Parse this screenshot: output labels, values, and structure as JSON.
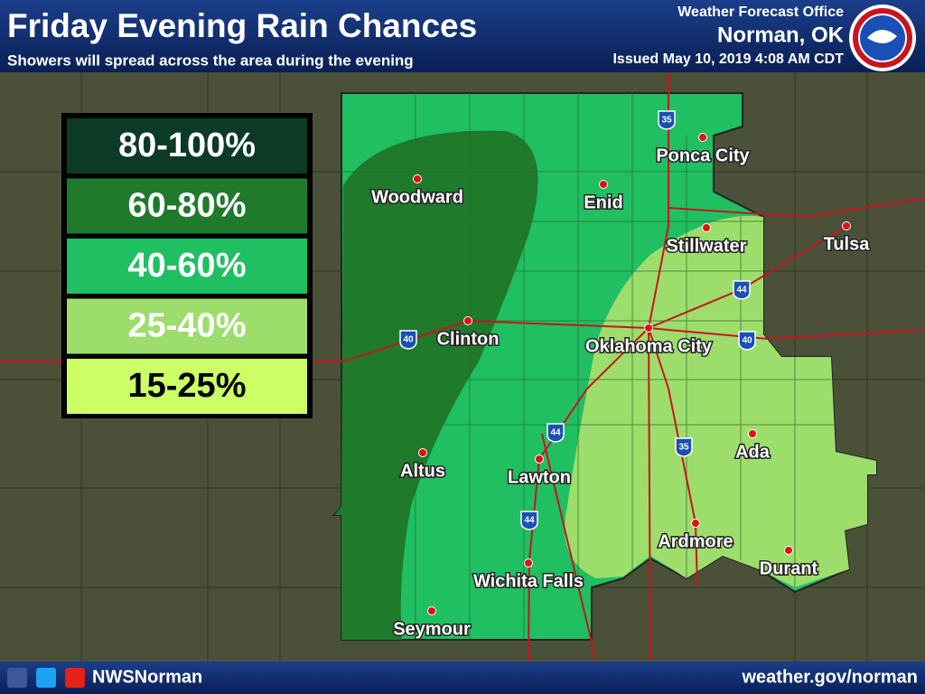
{
  "header": {
    "title": "Friday Evening Rain Chances",
    "subtitle": "Showers will spread across the area during the evening",
    "office": "Weather Forecast Office",
    "location": "Norman, OK",
    "issued": "Issued May 10, 2019 4:08 AM CDT"
  },
  "legend": [
    {
      "label": "80-100%",
      "color": "#0b3a26",
      "text_color": "#ffffff"
    },
    {
      "label": "60-80%",
      "color": "#1f7a2c",
      "text_color": "#ffffff"
    },
    {
      "label": "40-60%",
      "color": "#1fbf62",
      "text_color": "#ffffff"
    },
    {
      "label": "25-40%",
      "color": "#9ddd6c",
      "text_color": "#ffffff"
    },
    {
      "label": "15-25%",
      "color": "#ccff66",
      "text_color": "#000000"
    }
  ],
  "cities": [
    "Woodward",
    "Enid",
    "Ponca City",
    "Stillwater",
    "Tulsa",
    "Clinton",
    "Oklahoma City",
    "Altus",
    "Lawton",
    "Ada",
    "Ardmore",
    "Durant",
    "Wichita Falls",
    "Seymour"
  ],
  "highways": [
    "35",
    "35",
    "44",
    "44",
    "44",
    "40",
    "40"
  ],
  "footer": {
    "handle": "NWSNorman",
    "website": "weather.gov/norman"
  }
}
